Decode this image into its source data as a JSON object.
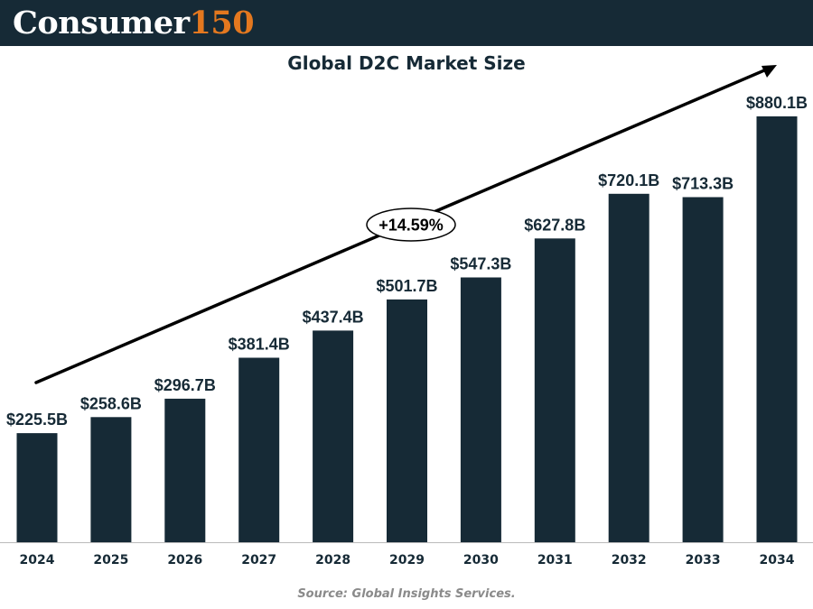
{
  "brand": {
    "name": "Consumer",
    "number": "150"
  },
  "colors": {
    "header_bg": "#162a36",
    "bar": "#162a36",
    "brand_accent": "#e4781f",
    "source_text": "#8a8a8a"
  },
  "chart_data": {
    "type": "bar",
    "title": "Global D2C Market Size",
    "xlabel": "",
    "ylabel": "",
    "categories": [
      "2024",
      "2025",
      "2026",
      "2027",
      "2028",
      "2029",
      "2030",
      "2031",
      "2032",
      "2033",
      "2034"
    ],
    "values": [
      225.5,
      258.6,
      296.7,
      381.4,
      437.4,
      501.7,
      547.3,
      627.8,
      720.1,
      713.3,
      880.1
    ],
    "value_labels": [
      "$225.5B",
      "$258.6B",
      "$296.7B",
      "$381.4B",
      "$437.4B",
      "$501.7B",
      "$547.3B",
      "$627.8B",
      "$720.1B",
      "$713.3B",
      "$880.1B"
    ],
    "unit": "Billion USD",
    "ylim": [
      0,
      1000
    ],
    "grid": false,
    "growth_annotation": "+14.59%"
  },
  "source": "Source: Global Insights Services."
}
